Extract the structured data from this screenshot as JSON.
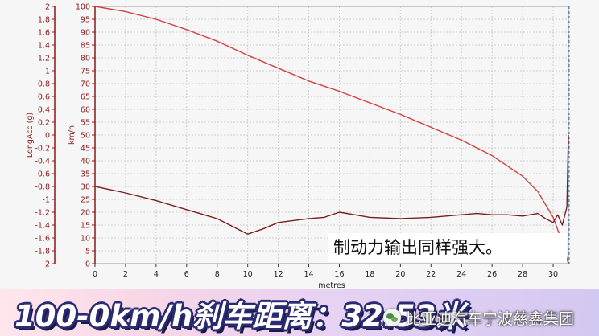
{
  "chart_data": {
    "type": "line",
    "xlabel": "metres",
    "ylabel_left": "LongAcc (g)",
    "ylabel_right": "km/h",
    "xlim": [
      0,
      31
    ],
    "xticks": [
      0,
      2,
      4,
      6,
      8,
      10,
      12,
      14,
      16,
      18,
      20,
      22,
      24,
      26,
      28,
      30
    ],
    "ylim_left": [
      -2,
      2
    ],
    "yticks_left": [
      "2",
      "1.8",
      "1.6",
      "1.4",
      "1.2",
      "1",
      "0.8",
      "0.6",
      "0.4",
      "0.2",
      "0",
      "-0.2",
      "-0.4",
      "-0.6",
      "-0.8",
      "-1",
      "-1.2",
      "-1.4",
      "-1.6",
      "-1.8",
      "-2"
    ],
    "ylim_right": [
      0,
      100
    ],
    "yticks_right": [
      "100",
      "95",
      "90",
      "85",
      "80",
      "75",
      "70",
      "65",
      "60",
      "55",
      "50",
      "45",
      "40",
      "35",
      "30",
      "25",
      "20",
      "15",
      "10",
      "5",
      "0"
    ],
    "grid": true,
    "series": [
      {
        "axis": "right",
        "color": "#d24040",
        "points": [
          [
            0,
            100
          ],
          [
            2,
            98
          ],
          [
            4,
            95
          ],
          [
            6,
            91
          ],
          [
            8,
            86.5
          ],
          [
            10,
            81
          ],
          [
            12,
            76
          ],
          [
            14,
            71
          ],
          [
            16,
            67
          ],
          [
            18,
            62.5
          ],
          [
            20,
            58
          ],
          [
            22,
            53
          ],
          [
            24,
            48
          ],
          [
            26,
            42
          ],
          [
            28,
            34
          ],
          [
            29,
            28
          ],
          [
            30,
            18
          ],
          [
            30.5,
            10
          ],
          [
            31,
            0
          ]
        ]
      },
      {
        "axis": "right",
        "color": "#7a1f1f",
        "points": [
          [
            0,
            30
          ],
          [
            2,
            27.5
          ],
          [
            4,
            24.5
          ],
          [
            6,
            21
          ],
          [
            8,
            17.5
          ],
          [
            9,
            14.5
          ],
          [
            10,
            11.5
          ],
          [
            11,
            13.5
          ],
          [
            12,
            16
          ],
          [
            14,
            17.5
          ],
          [
            15,
            18
          ],
          [
            16,
            20
          ],
          [
            17,
            19
          ],
          [
            18,
            18
          ],
          [
            20,
            17.5
          ],
          [
            22,
            18
          ],
          [
            24,
            19
          ],
          [
            25,
            19.5
          ],
          [
            26,
            19
          ],
          [
            27,
            19
          ],
          [
            28,
            18.5
          ],
          [
            29,
            19.5
          ],
          [
            29.5,
            17.5
          ],
          [
            30,
            16
          ],
          [
            30.3,
            19
          ],
          [
            30.6,
            15
          ],
          [
            30.9,
            22
          ],
          [
            31,
            50
          ]
        ]
      }
    ],
    "annotation": "制动力输出同样强大。"
  },
  "banner": {
    "title": "100-0km/h刹车距离：32.53米",
    "watermark": "比亚迪汽车宁波慈鑫集团"
  }
}
